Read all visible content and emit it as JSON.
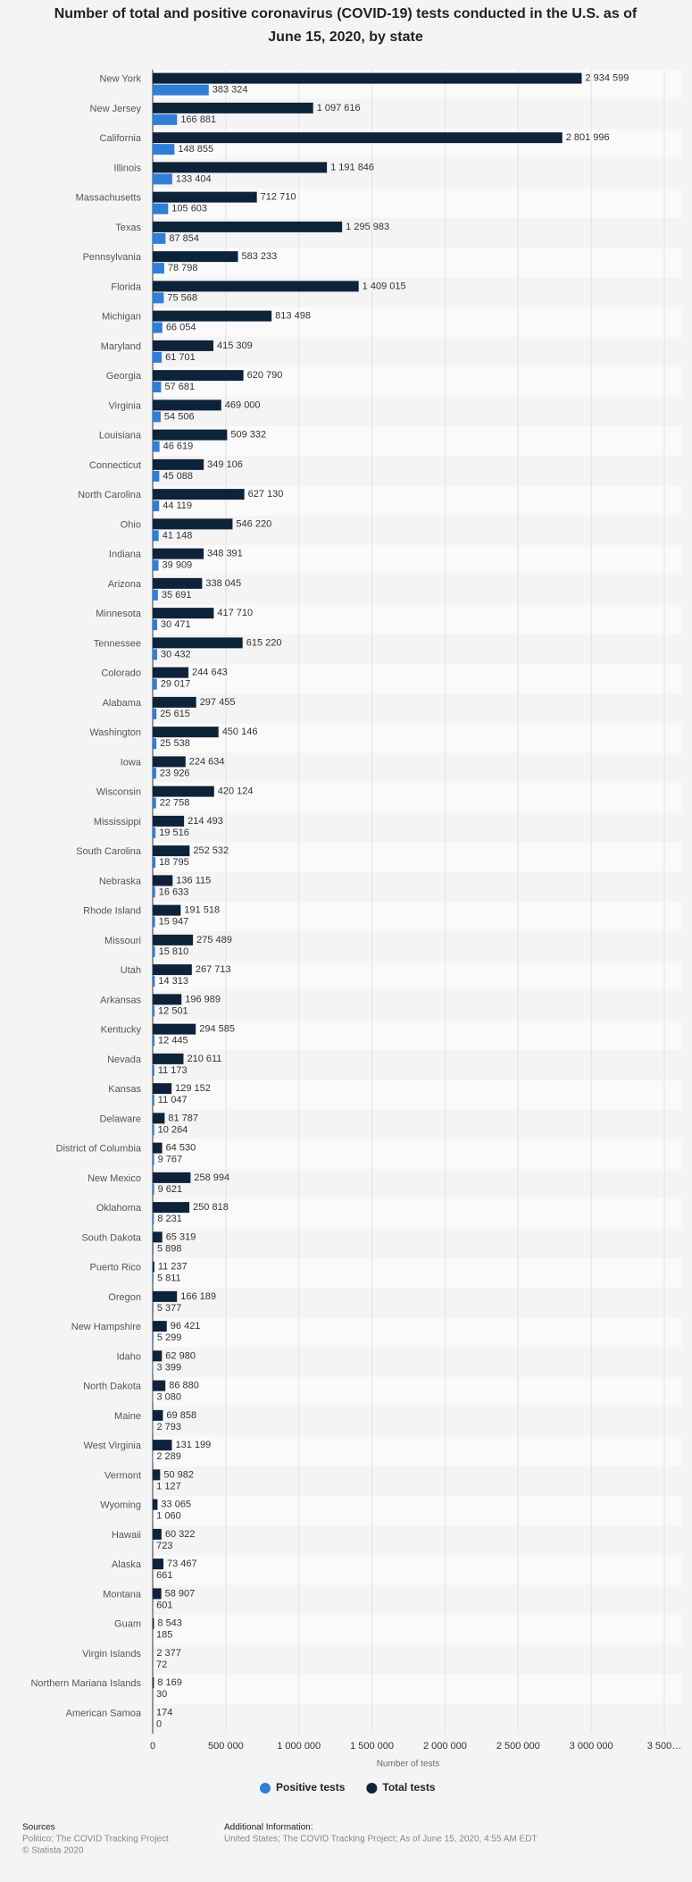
{
  "chart_data": {
    "type": "hbar",
    "title": "Number of total and positive coronavirus (COVID-19) tests conducted in the U.S. as of June 15, 2020, by state",
    "xlabel": "Number of tests",
    "categories": [
      "New York",
      "New Jersey",
      "California",
      "Illinois",
      "Massachusetts",
      "Texas",
      "Pennsylvania",
      "Florida",
      "Michigan",
      "Maryland",
      "Georgia",
      "Virginia",
      "Louisiana",
      "Connecticut",
      "North Carolina",
      "Ohio",
      "Indiana",
      "Arizona",
      "Minnesota",
      "Tennessee",
      "Colorado",
      "Alabama",
      "Washington",
      "Iowa",
      "Wisconsin",
      "Mississippi",
      "South Carolina",
      "Nebraska",
      "Rhode Island",
      "Missouri",
      "Utah",
      "Arkansas",
      "Kentucky",
      "Nevada",
      "Kansas",
      "Delaware",
      "District of Columbia",
      "New Mexico",
      "Oklahoma",
      "South Dakota",
      "Puerto Rico",
      "Oregon",
      "New Hampshire",
      "Idaho",
      "North Dakota",
      "Maine",
      "West Virginia",
      "Vermont",
      "Wyoming",
      "Hawaii",
      "Alaska",
      "Montana",
      "Guam",
      "Virgin Islands",
      "Northern Mariana Islands",
      "American Samoa"
    ],
    "series": [
      {
        "name": "Positive tests",
        "color": "#2f7ed8",
        "values": [
          383324,
          166881,
          148855,
          133404,
          105603,
          87854,
          78798,
          75568,
          66054,
          61701,
          57681,
          54506,
          46619,
          45088,
          44119,
          41148,
          39909,
          35691,
          30471,
          30432,
          29017,
          25615,
          25538,
          23926,
          22758,
          19516,
          18795,
          16633,
          15947,
          15810,
          14313,
          12501,
          12445,
          11173,
          11047,
          10264,
          9767,
          9621,
          8231,
          5898,
          5811,
          5377,
          5299,
          3399,
          3080,
          2793,
          2289,
          1127,
          1060,
          723,
          661,
          601,
          185,
          72,
          30,
          0
        ],
        "value_labels": [
          "383 324",
          "166 881",
          "148 855",
          "133 404",
          "105 603",
          "87 854",
          "78 798",
          "75 568",
          "66 054",
          "61 701",
          "57 681",
          "54 506",
          "46 619",
          "45 088",
          "44 119",
          "41 148",
          "39 909",
          "35 691",
          "30 471",
          "30 432",
          "29 017",
          "25 615",
          "25 538",
          "23 926",
          "22 758",
          "19 516",
          "18 795",
          "16 633",
          "15 947",
          "15 810",
          "14 313",
          "12 501",
          "12 445",
          "11 173",
          "11 047",
          "10 264",
          "9 767",
          "9 621",
          "8 231",
          "5 898",
          "5 811",
          "5 377",
          "5 299",
          "3 399",
          "3 080",
          "2 793",
          "2 289",
          "1 127",
          "1 060",
          "723",
          "661",
          "601",
          "185",
          "72",
          "30",
          "0"
        ]
      },
      {
        "name": "Total tests",
        "color": "#0d233a",
        "values": [
          2934599,
          1097616,
          2801996,
          1191846,
          712710,
          1295983,
          583233,
          1409015,
          813498,
          415309,
          620790,
          469000,
          509332,
          349106,
          627130,
          546220,
          348391,
          338045,
          417710,
          615220,
          244643,
          297455,
          450146,
          224634,
          420124,
          214493,
          252532,
          136115,
          191518,
          275489,
          267713,
          196989,
          294585,
          210611,
          129152,
          81787,
          64530,
          258994,
          250818,
          65319,
          11237,
          166189,
          96421,
          62980,
          86880,
          69858,
          131199,
          50982,
          33065,
          60322,
          73467,
          58907,
          8543,
          2377,
          8169,
          174
        ],
        "value_labels": [
          "2 934 599",
          "1 097 616",
          "2 801 996",
          "1 191 846",
          "712 710",
          "1 295 983",
          "583 233",
          "1 409 015",
          "813 498",
          "415 309",
          "620 790",
          "469 000",
          "509 332",
          "349 106",
          "627 130",
          "546 220",
          "348 391",
          "338 045",
          "417 710",
          "615 220",
          "244 643",
          "297 455",
          "450 146",
          "224 634",
          "420 124",
          "214 493",
          "252 532",
          "136 115",
          "191 518",
          "275 489",
          "267 713",
          "196 989",
          "294 585",
          "210 611",
          "129 152",
          "81 787",
          "64 530",
          "258 994",
          "250 818",
          "65 319",
          "11 237",
          "166 189",
          "96 421",
          "62 980",
          "86 880",
          "69 858",
          "131 199",
          "50 982",
          "33 065",
          "60 322",
          "73 467",
          "58 907",
          "8 543",
          "2 377",
          "8 169",
          "174"
        ]
      }
    ],
    "xlim": [
      0,
      3500000
    ],
    "xticks": [
      0,
      {
        "value": 500000,
        "label": "500 000"
      },
      {
        "value": 1000000,
        "label": "1 000 000"
      },
      {
        "value": 1500000,
        "label": "1 500 000"
      },
      {
        "value": 2000000,
        "label": "2 000 000"
      },
      {
        "value": 2500000,
        "label": "2 500 000"
      },
      {
        "value": 3000000,
        "label": "3 000 000"
      },
      {
        "value": 3500000,
        "label": "3 500…"
      }
    ],
    "grid": true,
    "legend": "bottom"
  },
  "footer": {
    "sources_title": "Sources",
    "sources": "Politico; The COVID Tracking Project",
    "copyright": "© Statista 2020",
    "info_title": "Additional Information:",
    "info": "United States; The COVID Tracking Project; As of June 15, 2020, 4:55 AM EDT"
  }
}
